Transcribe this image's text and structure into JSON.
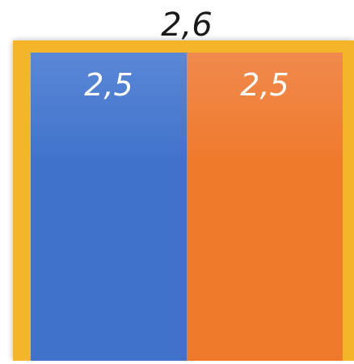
{
  "chart_data": {
    "type": "bar",
    "outer": {
      "value_label": "2,6",
      "value": 2.6,
      "color": "#f5b52a"
    },
    "categories": [
      "",
      ""
    ],
    "values": [
      2.5,
      2.5
    ],
    "value_labels": [
      "2,5",
      "2,5"
    ],
    "colors": [
      "#3f73cb",
      "#ef7a2c"
    ],
    "color_tops": [
      "#5b87d6",
      "#f08a4e"
    ],
    "title": "",
    "xlabel": "",
    "ylabel": "",
    "grid": false,
    "legend": "none"
  }
}
